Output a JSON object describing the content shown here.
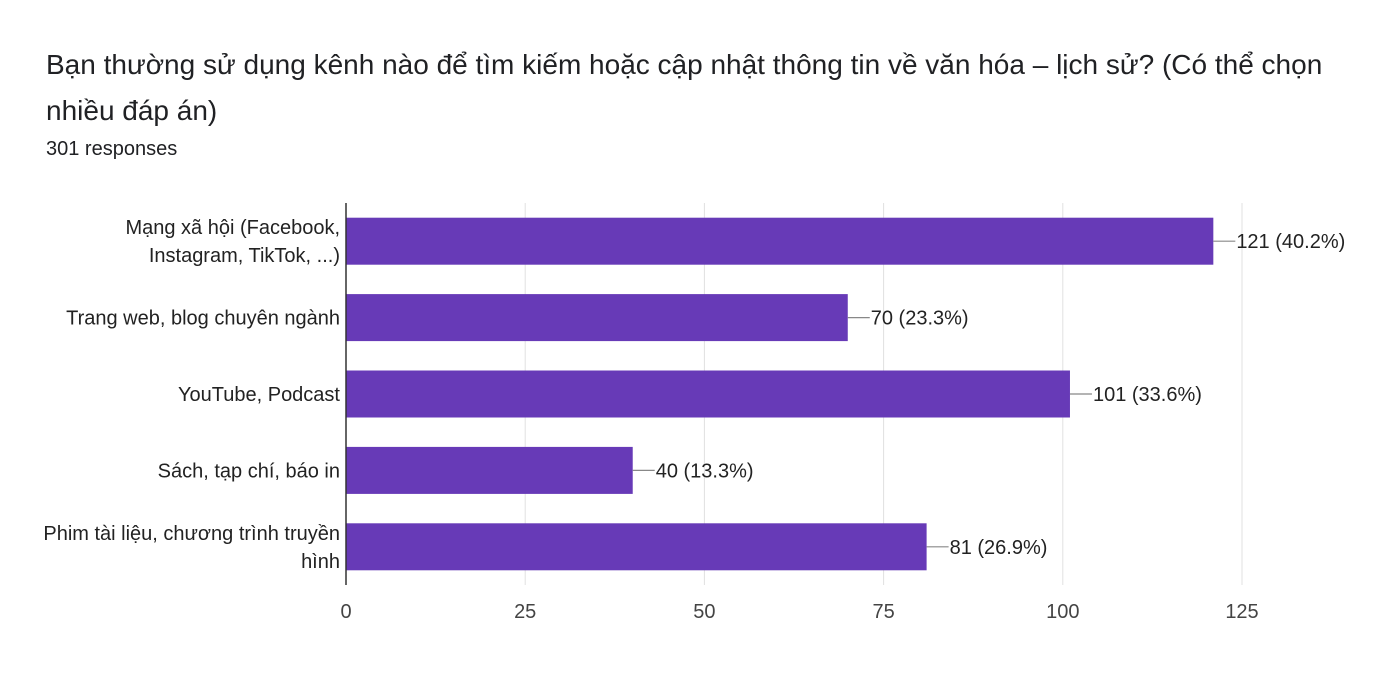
{
  "question": {
    "title": "Bạn thường sử dụng kênh nào để tìm kiếm hoặc cập nhật thông tin về văn hóa – lịch sử? (Có thể chọn nhiều đáp án)",
    "responses": "301 responses"
  },
  "chart_data": {
    "type": "bar",
    "orientation": "horizontal",
    "categories": [
      [
        "Mạng xã hội (Facebook,",
        "Instagram, TikTok, ...)"
      ],
      [
        "Trang web, blog chuyên ngành"
      ],
      [
        "YouTube, Podcast"
      ],
      [
        "Sách, tạp chí, báo in"
      ],
      [
        "Phim tài liệu, chương trình truyền",
        "hình"
      ]
    ],
    "values": [
      121,
      70,
      101,
      40,
      81
    ],
    "data_labels": [
      "121 (40.2%)",
      "70 (23.3%)",
      "101 (33.6%)",
      "40 (13.3%)",
      "81 (26.9%)"
    ],
    "xlim": [
      0,
      125
    ],
    "xticks": [
      "0",
      "25",
      "50",
      "75",
      "100",
      "125"
    ],
    "grid": true,
    "bar_color": "#673ab7"
  }
}
